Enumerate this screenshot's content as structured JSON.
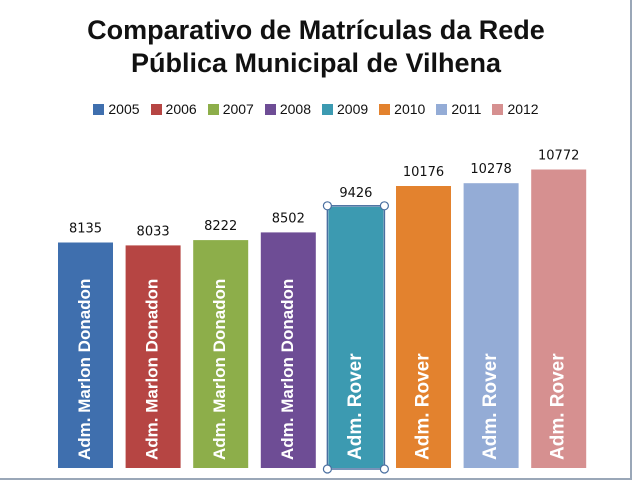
{
  "chart_data": {
    "type": "bar",
    "title_lines": [
      "Comparativo de Matrículas da Rede",
      "Pública Municipal de Vilhena"
    ],
    "categories": [
      "2005",
      "2006",
      "2007",
      "2008",
      "2009",
      "2010",
      "2011",
      "2012"
    ],
    "values": [
      8135,
      8033,
      8222,
      8502,
      9426,
      10176,
      10278,
      10772
    ],
    "bar_labels": [
      "Adm. Marlon Donadon",
      "Adm. Marlon Donadon",
      "Adm. Marlon Donadon",
      "Adm. Marlon Donadon",
      "Adm. Rover",
      "Adm. Rover",
      "Adm. Rover",
      "Adm. Rover"
    ],
    "colors": [
      "#3f6fae",
      "#b64543",
      "#8dae4a",
      "#6e4d95",
      "#3c9ab1",
      "#e3822e",
      "#94acd6",
      "#d69090"
    ],
    "legend": [
      "2005",
      "2006",
      "2007",
      "2008",
      "2009",
      "2010",
      "2011",
      "2012"
    ],
    "legend_position": "top",
    "selected_index": 4,
    "grid": false,
    "ylim": [
      0,
      11330
    ]
  }
}
